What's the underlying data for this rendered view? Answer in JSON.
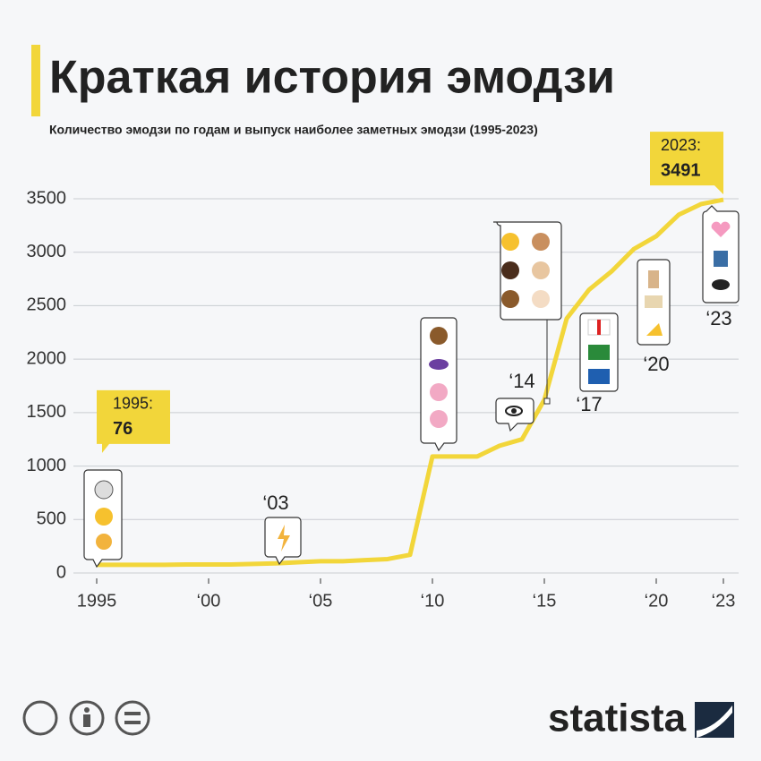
{
  "chart_data": {
    "type": "line",
    "title": "Краткая история эмодзи",
    "subtitle": "Количество эмодзи по годам и выпуск наиболее заметных эмодзи (1995-2023)",
    "x": [
      1995,
      1996,
      1997,
      1998,
      1999,
      2000,
      2001,
      2002,
      2003,
      2004,
      2005,
      2006,
      2007,
      2008,
      2009,
      2010,
      2011,
      2012,
      2013,
      2014,
      2015,
      2016,
      2017,
      2018,
      2019,
      2020,
      2021,
      2022,
      2023
    ],
    "values": [
      76,
      76,
      76,
      76,
      80,
      80,
      80,
      85,
      90,
      100,
      110,
      110,
      120,
      130,
      170,
      1090,
      1090,
      1090,
      1190,
      1250,
      1620,
      2380,
      2650,
      2820,
      3030,
      3150,
      3350,
      3450,
      3491
    ],
    "color": "#f2d63a",
    "xlim": [
      1995,
      2023
    ],
    "xticks": [
      1995,
      {
        "value": 2000,
        "label": "‘00"
      },
      {
        "value": 2005,
        "label": "‘05"
      },
      {
        "value": 2010,
        "label": "‘10"
      },
      {
        "value": 2015,
        "label": "‘15"
      },
      {
        "value": 2020,
        "label": "‘20"
      },
      {
        "value": 2023,
        "label": "‘23"
      }
    ],
    "ylim": [
      0,
      3500
    ],
    "yticks": [
      0,
      500,
      1000,
      1500,
      2000,
      2500,
      3000,
      3500
    ],
    "grid": true,
    "callouts": [
      {
        "x": 1995,
        "label": "1995:"
      },
      {
        "x": 2023,
        "label": "2023:"
      }
    ],
    "annotations": [
      {
        "x": 2003,
        "label": "‘03"
      },
      {
        "x": 2014,
        "label": "‘14"
      },
      {
        "x": 2017,
        "label": "‘17"
      },
      {
        "x": 2020,
        "label": "‘20"
      },
      {
        "x": 2023,
        "label": "‘23"
      }
    ],
    "brand": "statista"
  }
}
